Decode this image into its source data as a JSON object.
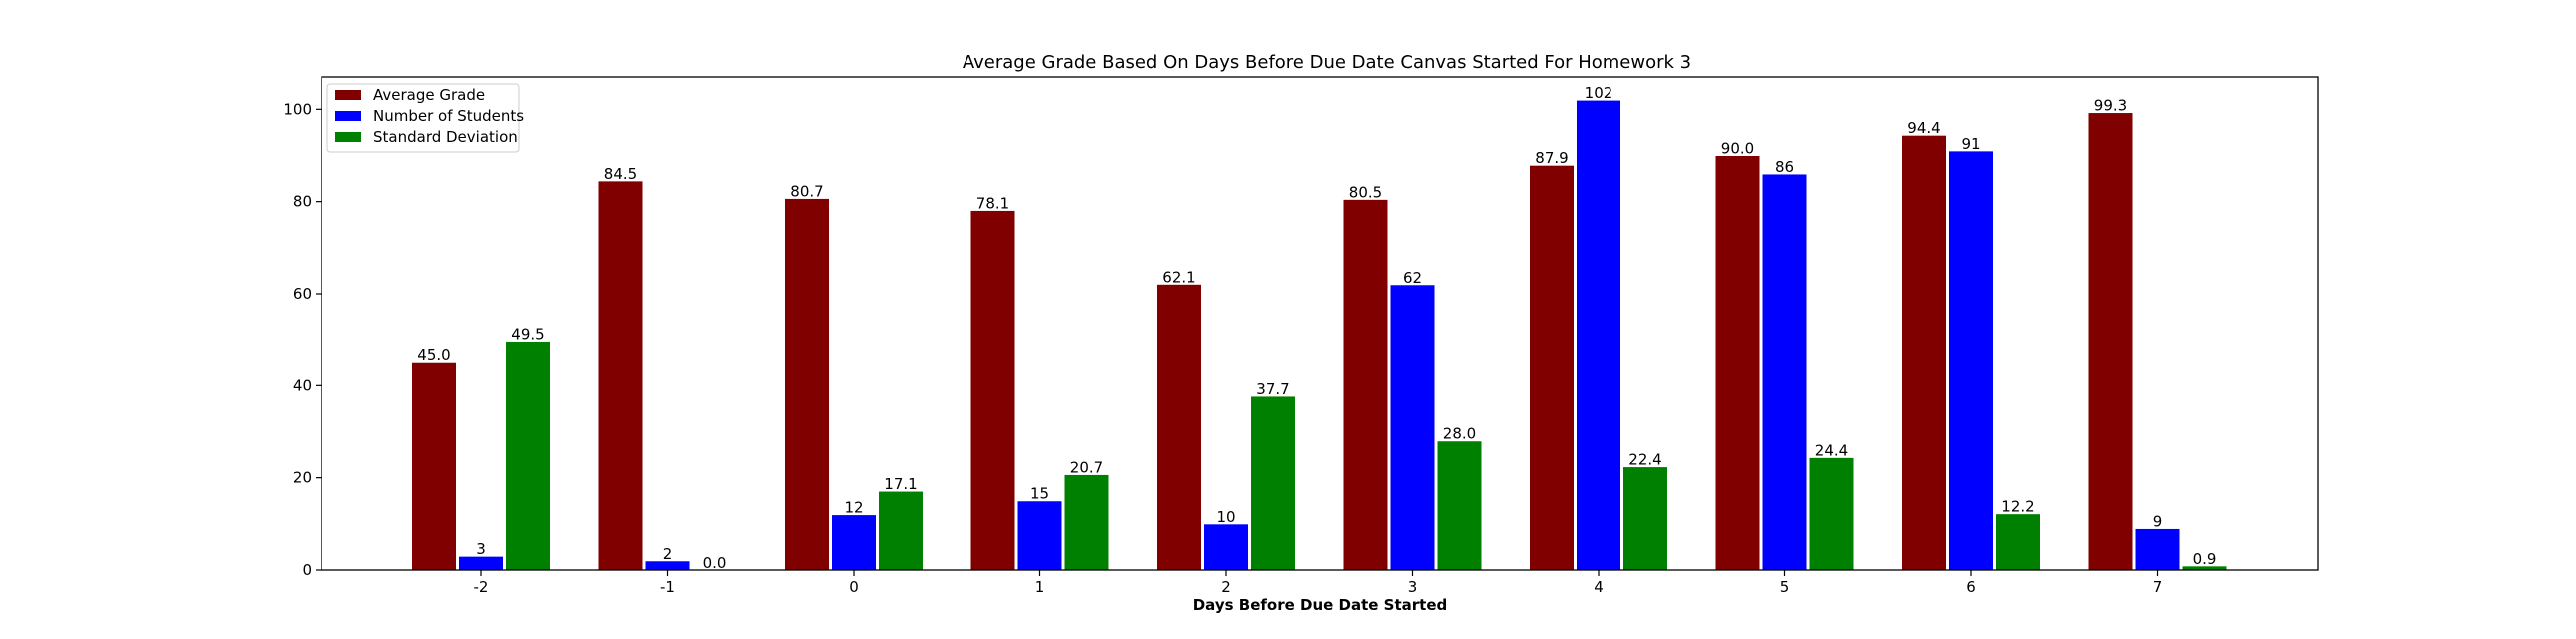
{
  "chart_data": {
    "type": "bar",
    "title": "Average Grade Based On Days Before Due Date Canvas Started For Homework 3",
    "xlabel": "Days Before Due Date Started",
    "ylabel": "",
    "categories": [
      "-2",
      "-1",
      "0",
      "1",
      "2",
      "3",
      "4",
      "5",
      "6",
      "7"
    ],
    "series": [
      {
        "name": "Average Grade",
        "color": "#800000",
        "values": [
          45.0,
          84.5,
          80.7,
          78.1,
          62.1,
          80.5,
          87.9,
          90.0,
          94.4,
          99.3
        ],
        "labels": [
          "45.0",
          "84.5",
          "80.7",
          "78.1",
          "62.1",
          "80.5",
          "87.9",
          "90.0",
          "94.4",
          "99.3"
        ]
      },
      {
        "name": "Number of Students",
        "color": "#0000ff",
        "values": [
          3,
          2,
          12,
          15,
          10,
          62,
          102,
          86,
          91,
          9
        ],
        "labels": [
          "3",
          "2",
          "12",
          "15",
          "10",
          "62",
          "102",
          "86",
          "91",
          "9"
        ]
      },
      {
        "name": "Standard Deviation",
        "color": "#008000",
        "values": [
          49.5,
          0.0,
          17.1,
          20.7,
          37.7,
          28.0,
          22.4,
          24.4,
          12.2,
          0.9
        ],
        "labels": [
          "49.5",
          "0.0",
          "17.1",
          "20.7",
          "37.7",
          "28.0",
          "22.4",
          "24.4",
          "12.2",
          "0.9"
        ]
      }
    ],
    "ylim": [
      0,
      107
    ],
    "yticks": [
      "0",
      "20",
      "40",
      "60",
      "80",
      "100"
    ],
    "legend": "top-left",
    "grid": false
  }
}
